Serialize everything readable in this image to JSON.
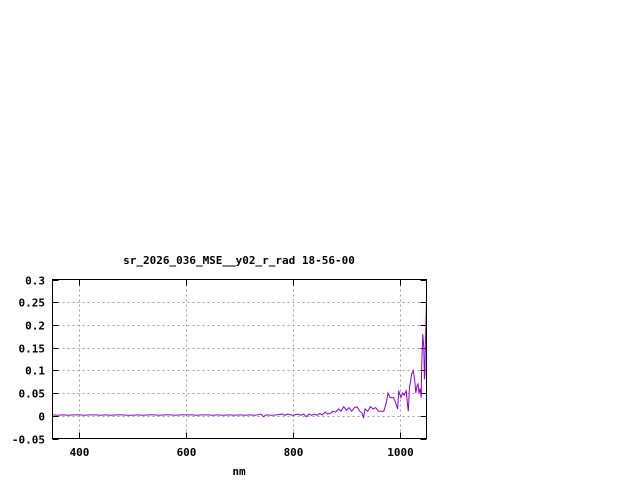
{
  "chart_data": {
    "type": "line",
    "title": "sr_2026_036_MSE__y02_r_rad 18-56-00",
    "xlabel": "nm",
    "ylabel": "",
    "xlim": [
      350,
      1050
    ],
    "ylim": [
      -0.05,
      0.3
    ],
    "xticks": [
      400,
      600,
      800,
      1000
    ],
    "xtick_labels": [
      "400",
      "600",
      "800",
      "1000"
    ],
    "yticks": [
      -0.05,
      0,
      0.05,
      0.1,
      0.15,
      0.2,
      0.25,
      0.3
    ],
    "ytick_labels": [
      "-0.05",
      "0",
      "0.05",
      "0.1",
      "0.15",
      "0.2",
      "0.25",
      "0.3"
    ],
    "grid": true,
    "line_color": "#9400d3",
    "series": [
      {
        "x": [
          350,
          360,
          370,
          380,
          390,
          400,
          410,
          420,
          430,
          440,
          450,
          460,
          470,
          480,
          490,
          500,
          510,
          520,
          530,
          540,
          550,
          560,
          570,
          580,
          590,
          600,
          610,
          620,
          630,
          640,
          650,
          660,
          670,
          680,
          690,
          700,
          710,
          720,
          730,
          740,
          745,
          750,
          760,
          770,
          780,
          785,
          790,
          800,
          810,
          815,
          820,
          825,
          830,
          835,
          840,
          845,
          850,
          855,
          860,
          865,
          870,
          875,
          880,
          885,
          890,
          895,
          900,
          905,
          910,
          915,
          920,
          925,
          930,
          932,
          935,
          940,
          945,
          950,
          955,
          960,
          965,
          970,
          975,
          978,
          982,
          988,
          992,
          996,
          998,
          1002,
          1005,
          1008,
          1012,
          1014,
          1016,
          1018,
          1022,
          1025,
          1028,
          1030,
          1032,
          1034,
          1036,
          1038,
          1040,
          1041,
          1043,
          1045,
          1046,
          1047,
          1048,
          1049,
          1050
        ],
        "y": [
          0.002,
          0.001,
          0.002,
          0.001,
          0.002,
          0.002,
          0.001,
          0.002,
          0.002,
          0.001,
          0.002,
          0.001,
          0.002,
          0.002,
          0.001,
          0.001,
          0.002,
          0.001,
          0.002,
          0.002,
          0.001,
          0.002,
          0.002,
          0.001,
          0.002,
          0.002,
          0.002,
          0.001,
          0.002,
          0.002,
          0.001,
          0.002,
          0.001,
          0.002,
          0.001,
          0.002,
          0.001,
          0.002,
          0.001,
          0.004,
          -0.002,
          0.002,
          0.001,
          0.002,
          0.004,
          0.001,
          0.004,
          0.001,
          0.004,
          0.001,
          0.004,
          -0.002,
          0.004,
          0.001,
          0.004,
          0.001,
          0.005,
          0.002,
          0.008,
          0.004,
          0.005,
          0.01,
          0.008,
          0.015,
          0.01,
          0.02,
          0.012,
          0.018,
          0.01,
          0.018,
          0.02,
          0.01,
          0.005,
          -0.005,
          0.015,
          0.01,
          0.02,
          0.015,
          0.018,
          0.01,
          0.01,
          0.01,
          0.03,
          0.05,
          0.04,
          0.04,
          0.03,
          0.015,
          0.055,
          0.04,
          0.05,
          0.045,
          0.055,
          0.03,
          0.01,
          0.06,
          0.09,
          0.1,
          0.08,
          0.05,
          0.065,
          0.07,
          0.05,
          0.06,
          0.04,
          0.11,
          0.18,
          0.15,
          0.08,
          0.09,
          0.16,
          0.21,
          0.265
        ]
      }
    ]
  }
}
